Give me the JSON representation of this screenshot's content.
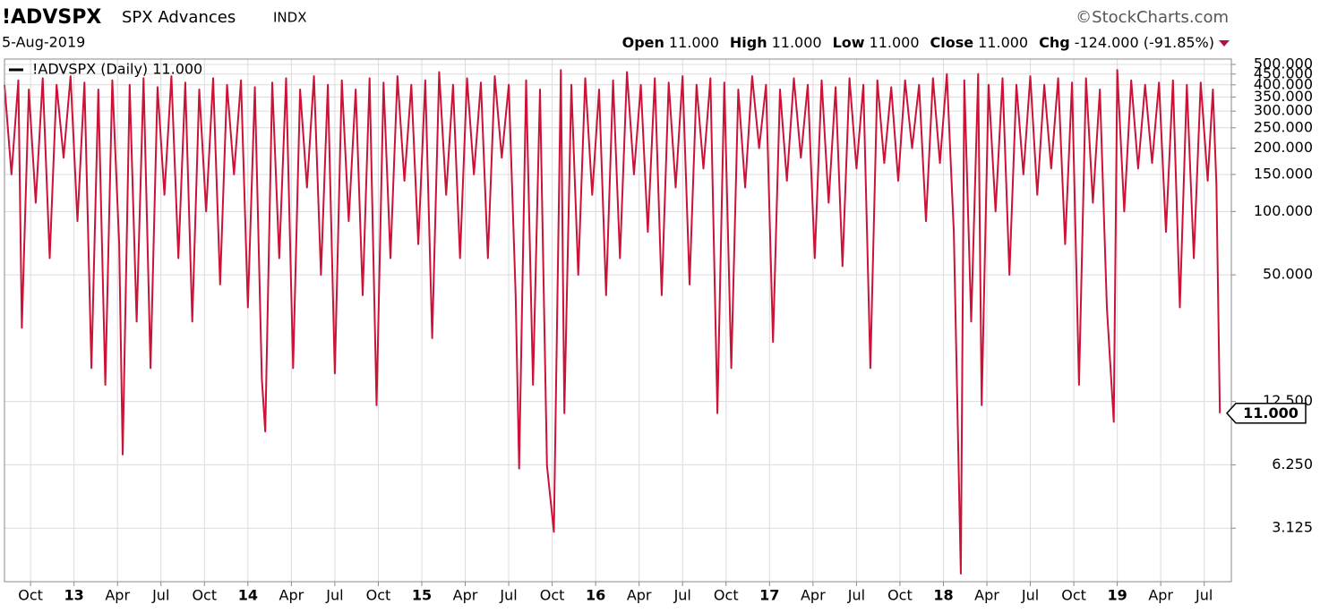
{
  "header": {
    "symbol": "!ADVSPX",
    "name": "SPX Advances",
    "exchange": "INDX",
    "date": "5-Aug-2019",
    "watermark": "©StockCharts.com",
    "ohlc": [
      {
        "label": "Open",
        "value": "11.000"
      },
      {
        "label": "High",
        "value": "11.000"
      },
      {
        "label": "Low",
        "value": "11.000"
      },
      {
        "label": "Close",
        "value": "11.000"
      },
      {
        "label": "Chg",
        "value": "-124.000 (-91.85%)"
      }
    ]
  },
  "chart_data": {
    "type": "line",
    "log_scale": true,
    "grid": true,
    "xlim": [
      2012.6,
      2019.62
    ],
    "ylim": [
      1.74,
      520
    ],
    "xticks": [
      {
        "value": 2012.75,
        "label": "Oct"
      },
      {
        "value": 2013,
        "label": "13"
      },
      {
        "value": 2013.25,
        "label": "Apr"
      },
      {
        "value": 2013.5,
        "label": "Jul"
      },
      {
        "value": 2013.75,
        "label": "Oct"
      },
      {
        "value": 2014,
        "label": "14"
      },
      {
        "value": 2014.25,
        "label": "Apr"
      },
      {
        "value": 2014.5,
        "label": "Jul"
      },
      {
        "value": 2014.75,
        "label": "Oct"
      },
      {
        "value": 2015,
        "label": "15"
      },
      {
        "value": 2015.25,
        "label": "Apr"
      },
      {
        "value": 2015.5,
        "label": "Jul"
      },
      {
        "value": 2015.75,
        "label": "Oct"
      },
      {
        "value": 2016,
        "label": "16"
      },
      {
        "value": 2016.25,
        "label": "Apr"
      },
      {
        "value": 2016.5,
        "label": "Jul"
      },
      {
        "value": 2016.75,
        "label": "Oct"
      },
      {
        "value": 2017,
        "label": "17"
      },
      {
        "value": 2017.25,
        "label": "Apr"
      },
      {
        "value": 2017.5,
        "label": "Jul"
      },
      {
        "value": 2017.75,
        "label": "Oct"
      },
      {
        "value": 2018,
        "label": "18"
      },
      {
        "value": 2018.25,
        "label": "Apr"
      },
      {
        "value": 2018.5,
        "label": "Jul"
      },
      {
        "value": 2018.75,
        "label": "Oct"
      },
      {
        "value": 2019,
        "label": "19"
      },
      {
        "value": 2019.25,
        "label": "Apr"
      },
      {
        "value": 2019.5,
        "label": "Jul"
      }
    ],
    "yticks": [
      {
        "value": 3.125,
        "label": "3.125"
      },
      {
        "value": 6.25,
        "label": "6.250"
      },
      {
        "value": 12.5,
        "label": "12.500"
      },
      {
        "value": 50,
        "label": "50.000"
      },
      {
        "value": 100,
        "label": "100.000"
      },
      {
        "value": 150,
        "label": "150.000"
      },
      {
        "value": 200,
        "label": "200.000"
      },
      {
        "value": 250,
        "label": "250.000"
      },
      {
        "value": 300,
        "label": "300.000"
      },
      {
        "value": 350,
        "label": "350.000"
      },
      {
        "value": 400,
        "label": "400.000"
      },
      {
        "value": 450,
        "label": "450.000"
      },
      {
        "value": 500,
        "label": "500.000"
      }
    ],
    "last_label": "11.000",
    "x": [
      2012.6,
      2012.64,
      2012.68,
      2012.7,
      2012.74,
      2012.78,
      2012.82,
      2012.86,
      2012.9,
      2012.94,
      2012.98,
      2013.02,
      2013.06,
      2013.1,
      2013.14,
      2013.18,
      2013.22,
      2013.26,
      2013.28,
      2013.32,
      2013.36,
      2013.4,
      2013.44,
      2013.48,
      2013.52,
      2013.56,
      2013.6,
      2013.64,
      2013.68,
      2013.72,
      2013.76,
      2013.8,
      2013.84,
      2013.88,
      2013.92,
      2013.96,
      2014.0,
      2014.04,
      2014.08,
      2014.1,
      2014.14,
      2014.18,
      2014.22,
      2014.26,
      2014.3,
      2014.34,
      2014.38,
      2014.42,
      2014.46,
      2014.5,
      2014.54,
      2014.58,
      2014.62,
      2014.66,
      2014.7,
      2014.74,
      2014.78,
      2014.82,
      2014.86,
      2014.9,
      2014.94,
      2014.98,
      2015.02,
      2015.06,
      2015.1,
      2015.14,
      2015.18,
      2015.22,
      2015.26,
      2015.3,
      2015.34,
      2015.38,
      2015.42,
      2015.46,
      2015.5,
      2015.54,
      2015.56,
      2015.6,
      2015.64,
      2015.68,
      2015.72,
      2015.76,
      2015.8,
      2015.82,
      2015.86,
      2015.9,
      2015.94,
      2015.98,
      2016.02,
      2016.06,
      2016.1,
      2016.14,
      2016.18,
      2016.22,
      2016.26,
      2016.3,
      2016.34,
      2016.38,
      2016.42,
      2016.46,
      2016.5,
      2016.54,
      2016.58,
      2016.62,
      2016.66,
      2016.7,
      2016.74,
      2016.78,
      2016.82,
      2016.86,
      2016.9,
      2016.94,
      2016.98,
      2017.02,
      2017.06,
      2017.1,
      2017.14,
      2017.18,
      2017.22,
      2017.26,
      2017.3,
      2017.34,
      2017.38,
      2017.42,
      2017.46,
      2017.5,
      2017.54,
      2017.58,
      2017.62,
      2017.66,
      2017.7,
      2017.74,
      2017.78,
      2017.82,
      2017.86,
      2017.9,
      2017.94,
      2017.98,
      2018.02,
      2018.06,
      2018.1,
      2018.12,
      2018.16,
      2018.2,
      2018.22,
      2018.26,
      2018.3,
      2018.34,
      2018.38,
      2018.42,
      2018.46,
      2018.5,
      2018.54,
      2018.58,
      2018.62,
      2018.66,
      2018.7,
      2018.74,
      2018.78,
      2018.82,
      2018.86,
      2018.9,
      2018.94,
      2018.98,
      2019.0,
      2019.04,
      2019.08,
      2019.12,
      2019.16,
      2019.2,
      2019.24,
      2019.28,
      2019.32,
      2019.36,
      2019.4,
      2019.44,
      2019.48,
      2019.52,
      2019.55,
      2019.57,
      2019.59
    ],
    "series": [
      {
        "name": "!ADVSPX (Daily) 11.000",
        "color": "#cc1236",
        "values": [
          400,
          150,
          420,
          28,
          380,
          110,
          430,
          60,
          400,
          180,
          440,
          90,
          410,
          18,
          380,
          15,
          420,
          70,
          7,
          400,
          30,
          430,
          18,
          390,
          120,
          440,
          60,
          410,
          30,
          380,
          100,
          430,
          45,
          400,
          150,
          420,
          35,
          390,
          16,
          9,
          410,
          60,
          430,
          18,
          380,
          130,
          440,
          50,
          400,
          17,
          420,
          90,
          380,
          40,
          430,
          12,
          410,
          60,
          440,
          140,
          400,
          70,
          420,
          25,
          460,
          120,
          400,
          60,
          430,
          150,
          410,
          60,
          440,
          180,
          400,
          40,
          6,
          420,
          15,
          380,
          6.2,
          3,
          470,
          11,
          400,
          50,
          430,
          120,
          380,
          40,
          420,
          60,
          460,
          150,
          400,
          80,
          430,
          40,
          410,
          130,
          440,
          45,
          400,
          160,
          430,
          11,
          410,
          18,
          380,
          130,
          440,
          200,
          400,
          24,
          380,
          140,
          430,
          180,
          400,
          60,
          420,
          110,
          390,
          55,
          430,
          160,
          400,
          18,
          420,
          170,
          390,
          140,
          420,
          200,
          400,
          90,
          430,
          170,
          450,
          80,
          1.9,
          420,
          30,
          450,
          12,
          400,
          100,
          430,
          50,
          400,
          150,
          440,
          120,
          400,
          160,
          430,
          70,
          410,
          15,
          430,
          110,
          380,
          35,
          10,
          470,
          100,
          420,
          160,
          400,
          170,
          410,
          80,
          420,
          35,
          400,
          60,
          410,
          140,
          380,
          135,
          11
        ]
      }
    ]
  }
}
